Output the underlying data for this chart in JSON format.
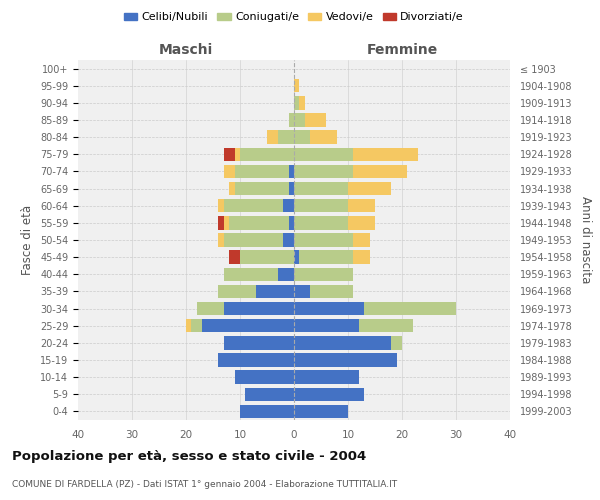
{
  "age_groups": [
    "0-4",
    "5-9",
    "10-14",
    "15-19",
    "20-24",
    "25-29",
    "30-34",
    "35-39",
    "40-44",
    "45-49",
    "50-54",
    "55-59",
    "60-64",
    "65-69",
    "70-74",
    "75-79",
    "80-84",
    "85-89",
    "90-94",
    "95-99",
    "100+"
  ],
  "birth_years": [
    "1999-2003",
    "1994-1998",
    "1989-1993",
    "1984-1988",
    "1979-1983",
    "1974-1978",
    "1969-1973",
    "1964-1968",
    "1959-1963",
    "1954-1958",
    "1949-1953",
    "1944-1948",
    "1939-1943",
    "1934-1938",
    "1929-1933",
    "1924-1928",
    "1919-1923",
    "1914-1918",
    "1909-1913",
    "1904-1908",
    "≤ 1903"
  ],
  "maschi": {
    "celibi": [
      10,
      9,
      11,
      14,
      13,
      17,
      13,
      7,
      3,
      0,
      2,
      1,
      2,
      1,
      1,
      0,
      0,
      0,
      0,
      0,
      0
    ],
    "coniugati": [
      0,
      0,
      0,
      0,
      0,
      2,
      5,
      7,
      10,
      10,
      11,
      11,
      11,
      10,
      10,
      10,
      3,
      1,
      0,
      0,
      0
    ],
    "vedovi": [
      0,
      0,
      0,
      0,
      0,
      1,
      0,
      0,
      0,
      0,
      1,
      1,
      1,
      1,
      2,
      1,
      2,
      0,
      0,
      0,
      0
    ],
    "divorziati": [
      0,
      0,
      0,
      0,
      0,
      0,
      0,
      0,
      0,
      2,
      0,
      1,
      0,
      0,
      0,
      2,
      0,
      0,
      0,
      0,
      0
    ]
  },
  "femmine": {
    "nubili": [
      10,
      13,
      12,
      19,
      18,
      12,
      13,
      3,
      0,
      1,
      0,
      0,
      0,
      0,
      0,
      0,
      0,
      0,
      0,
      0,
      0
    ],
    "coniugate": [
      0,
      0,
      0,
      0,
      2,
      10,
      17,
      8,
      11,
      10,
      11,
      10,
      10,
      10,
      11,
      11,
      3,
      2,
      1,
      0,
      0
    ],
    "vedove": [
      0,
      0,
      0,
      0,
      0,
      0,
      0,
      0,
      0,
      3,
      3,
      5,
      5,
      8,
      10,
      12,
      5,
      4,
      1,
      1,
      0
    ],
    "divorziate": [
      0,
      0,
      0,
      0,
      0,
      0,
      0,
      0,
      0,
      0,
      0,
      0,
      0,
      0,
      0,
      0,
      0,
      0,
      0,
      0,
      0
    ]
  },
  "colors": {
    "celibi_nubili": "#4472C4",
    "coniugati": "#B8CC8A",
    "vedovi": "#F5C862",
    "divorziati": "#C0392B"
  },
  "title": "Popolazione per età, sesso e stato civile - 2004",
  "subtitle": "COMUNE DI FARDELLA (PZ) - Dati ISTAT 1° gennaio 2004 - Elaborazione TUTTITALIA.IT",
  "xlabel_left": "Maschi",
  "xlabel_right": "Femmine",
  "ylabel_left": "Fasce di età",
  "ylabel_right": "Anni di nascita",
  "xlim": 40,
  "bg_color": "#FFFFFF",
  "plot_bg": "#F0F0F0",
  "grid_color": "#CCCCCC"
}
